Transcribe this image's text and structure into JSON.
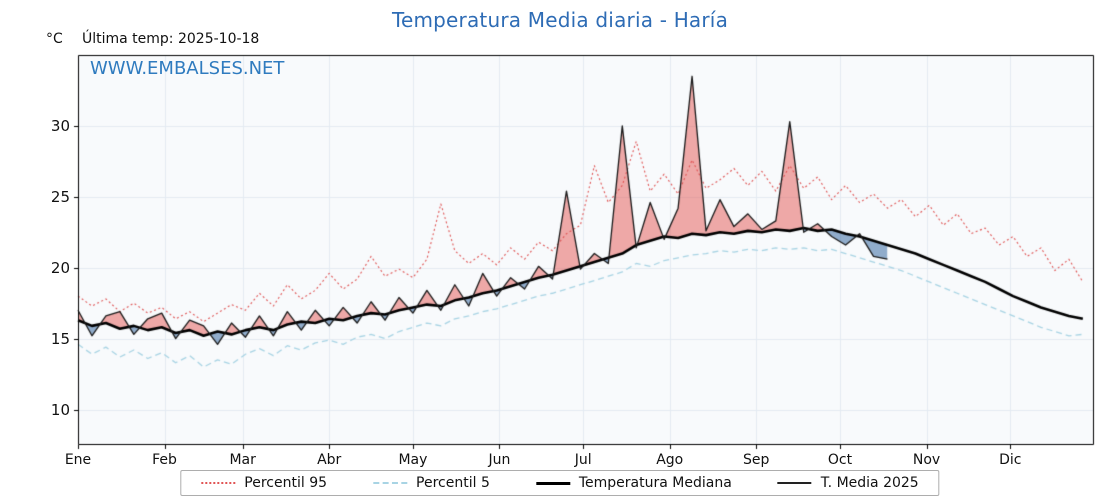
{
  "page": {
    "title": "Temperatura Media diaria - Haría",
    "unit_label": "°C",
    "last_temp_label": "Última temp: 2025-10-18",
    "watermark": "WWW.EMBALSES.NET"
  },
  "legend": {
    "items": [
      {
        "label": "Percentil 95",
        "sample": "dotted-red"
      },
      {
        "label": "Percentil 5",
        "sample": "dashed-blue"
      },
      {
        "label": "Temperatura Mediana",
        "sample": "solid-thick"
      },
      {
        "label": "T. Media 2025",
        "sample": "solid-thin"
      }
    ]
  },
  "chart_data": {
    "type": "line",
    "title": "Temperatura Media diaria - Haría",
    "ylabel": "°C",
    "ylim": [
      7.5,
      35.0
    ],
    "yticks": [
      10,
      15,
      20,
      25,
      30
    ],
    "x_months": [
      "Ene",
      "Feb",
      "Mar",
      "Abr",
      "May",
      "Jun",
      "Jul",
      "Ago",
      "Sep",
      "Oct",
      "Nov",
      "Dic"
    ],
    "month_start_days": [
      0,
      31,
      59,
      90,
      120,
      151,
      181,
      212,
      243,
      273,
      304,
      334
    ],
    "days_total": 364,
    "x_day_step": 5,
    "grid": true,
    "legend_position": "bottom",
    "colors": {
      "percentil95": "#e05555",
      "percentil5": "#a8d4e4",
      "mediana": "#000000",
      "t_media_2025": "#1a1a1a",
      "fill_above": "rgba(228,80,75,0.48)",
      "fill_below": "rgba(75,120,170,0.6)",
      "plot_bg": "#f8fafc",
      "gridline": "#e4eaf2",
      "frame": "#000000"
    },
    "series": [
      {
        "name": "Percentil 95",
        "style": "dotted",
        "color": "#e05555",
        "values": [
          18.0,
          17.3,
          17.8,
          16.9,
          17.5,
          16.8,
          17.2,
          16.4,
          16.9,
          16.2,
          16.8,
          17.4,
          17.0,
          18.2,
          17.3,
          18.8,
          17.8,
          18.4,
          19.6,
          18.5,
          19.2,
          20.8,
          19.4,
          19.9,
          19.3,
          20.6,
          24.5,
          21.2,
          20.3,
          21.0,
          20.2,
          21.4,
          20.6,
          21.8,
          21.2,
          22.4,
          23.0,
          27.2,
          24.6,
          25.8,
          28.9,
          25.4,
          26.6,
          25.2,
          27.6,
          25.6,
          26.2,
          27.0,
          25.8,
          26.8,
          25.4,
          27.2,
          25.6,
          26.4,
          24.8,
          25.8,
          24.6,
          25.2,
          24.2,
          24.8,
          23.6,
          24.4,
          23.0,
          23.8,
          22.4,
          22.8,
          21.6,
          22.2,
          20.8,
          21.4,
          19.8,
          20.6,
          19.0
        ]
      },
      {
        "name": "Percentil 5",
        "style": "dashed",
        "color": "#a8d4e4",
        "values": [
          14.6,
          13.9,
          14.4,
          13.7,
          14.2,
          13.6,
          14.0,
          13.3,
          13.8,
          13.0,
          13.5,
          13.2,
          13.9,
          14.3,
          13.8,
          14.5,
          14.2,
          14.7,
          14.9,
          14.6,
          15.1,
          15.3,
          15.0,
          15.5,
          15.8,
          16.1,
          15.9,
          16.4,
          16.6,
          16.9,
          17.1,
          17.4,
          17.7,
          18.0,
          18.2,
          18.5,
          18.8,
          19.1,
          19.4,
          19.7,
          20.3,
          20.1,
          20.5,
          20.7,
          20.9,
          21.0,
          21.2,
          21.1,
          21.3,
          21.2,
          21.4,
          21.3,
          21.4,
          21.2,
          21.3,
          21.0,
          20.7,
          20.4,
          20.1,
          19.8,
          19.4,
          19.0,
          18.6,
          18.2,
          17.8,
          17.4,
          17.0,
          16.6,
          16.2,
          15.8,
          15.5,
          15.2,
          15.3
        ]
      },
      {
        "name": "Temperatura Mediana",
        "style": "solid-thick",
        "color": "#000000",
        "values": [
          16.3,
          15.9,
          16.1,
          15.7,
          15.9,
          15.6,
          15.8,
          15.4,
          15.6,
          15.2,
          15.5,
          15.3,
          15.6,
          15.8,
          15.6,
          16.0,
          16.2,
          16.1,
          16.4,
          16.3,
          16.6,
          16.8,
          16.7,
          17.0,
          17.2,
          17.4,
          17.3,
          17.7,
          17.9,
          18.2,
          18.4,
          18.7,
          19.0,
          19.3,
          19.5,
          19.8,
          20.1,
          20.4,
          20.7,
          21.0,
          21.6,
          21.9,
          22.2,
          22.1,
          22.4,
          22.3,
          22.5,
          22.4,
          22.6,
          22.5,
          22.7,
          22.6,
          22.8,
          22.6,
          22.7,
          22.4,
          22.2,
          21.9,
          21.6,
          21.3,
          21.0,
          20.6,
          20.2,
          19.8,
          19.4,
          19.0,
          18.5,
          18.0,
          17.6,
          17.2,
          16.9,
          16.6,
          16.4
        ]
      },
      {
        "name": "T. Media 2025",
        "style": "solid-thin",
        "color": "#1a1a1a",
        "fill_vs": "Temperatura Mediana",
        "values": [
          17.0,
          15.2,
          16.6,
          16.9,
          15.3,
          16.4,
          16.8,
          15.0,
          16.3,
          15.9,
          14.6,
          16.1,
          15.1,
          16.6,
          15.2,
          16.9,
          15.6,
          17.0,
          15.9,
          17.2,
          16.1,
          17.6,
          16.3,
          17.9,
          16.8,
          18.4,
          17.0,
          18.8,
          17.3,
          19.6,
          18.0,
          19.3,
          18.5,
          20.1,
          19.2,
          25.4,
          19.9,
          21.0,
          20.3,
          30.0,
          21.4,
          24.6,
          22.0,
          24.2,
          33.5,
          22.6,
          24.8,
          22.9,
          23.8,
          22.7,
          23.3,
          30.3,
          22.5,
          23.1,
          22.2,
          21.6,
          22.4,
          20.8,
          20.6,
          null,
          null,
          null,
          null,
          null,
          null,
          null,
          null,
          null,
          null,
          null,
          null,
          null,
          null
        ]
      }
    ]
  }
}
